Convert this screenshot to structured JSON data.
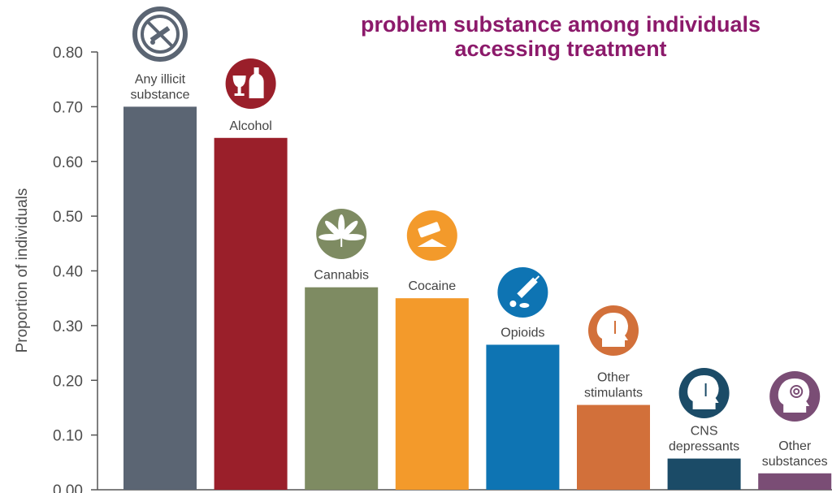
{
  "title_lines": [
    "",
    "problem substance among individuals",
    "accessing treatment"
  ],
  "colors": {
    "title": "#8c1a6b",
    "any_illicit": "#5b6573",
    "alcohol": "#9a1f2a",
    "cannabis": "#7e8b62",
    "cocaine": "#f39a2b",
    "opioids": "#0e74b3",
    "other_stimulants": "#d2703a",
    "cns_depressants": "#1b4b67",
    "other_substances": "#7a4d75"
  },
  "icons": [
    "no-drugs-icon",
    "wine-bottle-icon",
    "cannabis-leaf-icon",
    "razor-blade-icon",
    "syringe-pills-icon",
    "head-brain-arrow-icon",
    "head-brain-arrow-down-icon",
    "head-spiral-icon"
  ],
  "chart_data": {
    "type": "bar",
    "categories": [
      [
        "Any illicit",
        "substance"
      ],
      [
        "Alcohol"
      ],
      [
        "Cannabis"
      ],
      [
        "Cocaine"
      ],
      [
        "Opioids"
      ],
      [
        "Other",
        "stimulants"
      ],
      [
        "CNS",
        "depressants"
      ],
      [
        "Other",
        "substances"
      ]
    ],
    "values": [
      0.7,
      0.643,
      0.37,
      0.35,
      0.265,
      0.155,
      0.057,
      0.03
    ],
    "bar_colors": [
      "#5b6573",
      "#9a1f2a",
      "#7e8b62",
      "#f39a2b",
      "#0e74b3",
      "#d2703a",
      "#1b4b67",
      "#7a4d75"
    ],
    "ylabel": "Proportion of individuals",
    "xlabel": "",
    "ylim": [
      0,
      0.8
    ],
    "yticks": [
      "0.00",
      "0.10",
      "0.20",
      "0.30",
      "0.40",
      "0.50",
      "0.60",
      "0.70",
      "0.80"
    ],
    "grid": false,
    "legend": "none"
  }
}
